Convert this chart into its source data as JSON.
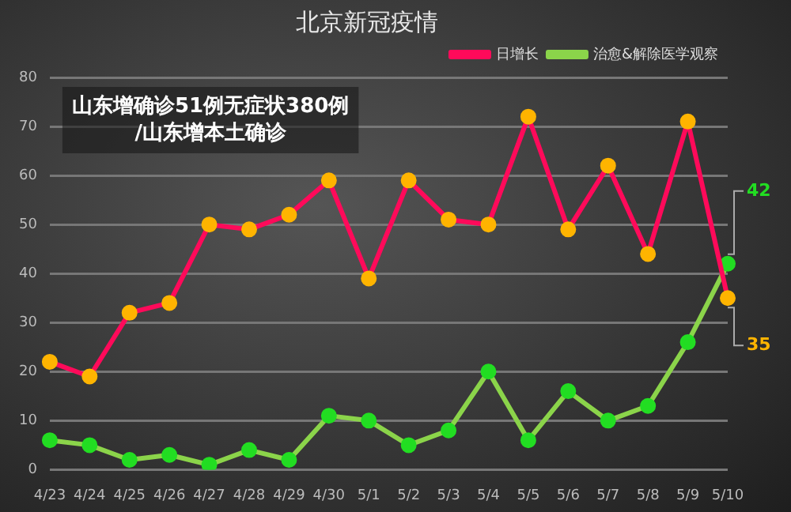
{
  "chart_data": {
    "type": "line",
    "title": "北京新冠疫情",
    "categories": [
      "4/23",
      "4/24",
      "4/25",
      "4/26",
      "4/27",
      "4/28",
      "4/29",
      "4/30",
      "5/1",
      "5/2",
      "5/3",
      "5/4",
      "5/5",
      "5/6",
      "5/7",
      "5/8",
      "5/9",
      "5/10"
    ],
    "series": [
      {
        "name": "日增长",
        "color": "#ff0a5a",
        "values": [
          22,
          19,
          32,
          34,
          50,
          49,
          52,
          59,
          39,
          59,
          51,
          50,
          72,
          49,
          62,
          44,
          71,
          35
        ],
        "value_labels": [
          null,
          null,
          null,
          null,
          null,
          null,
          null,
          null,
          null,
          null,
          null,
          null,
          null,
          null,
          null,
          null,
          null,
          "35"
        ]
      },
      {
        "name": "治愈&解除医学观察",
        "color": "#8bd44a",
        "values": [
          6,
          5,
          2,
          3,
          1,
          4,
          2,
          11,
          10,
          5,
          8,
          20,
          6,
          16,
          10,
          13,
          26,
          42
        ],
        "value_labels": [
          null,
          null,
          null,
          null,
          null,
          null,
          null,
          null,
          null,
          null,
          null,
          null,
          null,
          null,
          null,
          null,
          null,
          "42"
        ]
      }
    ],
    "ylim": [
      0,
      80
    ],
    "yticks": [
      0,
      10,
      20,
      30,
      40,
      50,
      60,
      70,
      80
    ],
    "grid": "y",
    "legend": "top right",
    "marker": "circle",
    "annotations": [
      "山东增确诊51例无症状380例/山东增本土确诊"
    ]
  }
}
